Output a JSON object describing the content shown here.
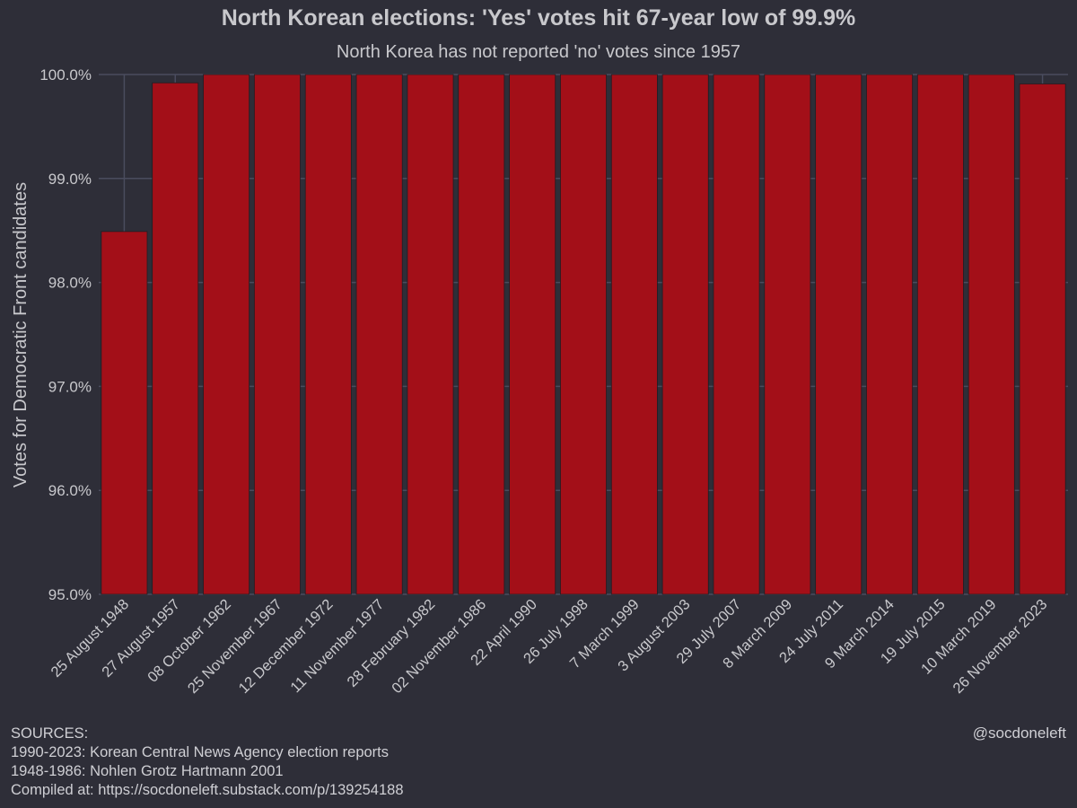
{
  "chart_data": {
    "type": "bar",
    "title": "North Korean elections: 'Yes' votes hit 67-year low of 99.9%",
    "subtitle": "North Korea has not reported 'no' votes since 1957",
    "xlabel": "",
    "ylabel": "Votes for Democratic Front candidates",
    "ylim": [
      95.0,
      100.0
    ],
    "yticks": [
      "95.0%",
      "96.0%",
      "97.0%",
      "98.0%",
      "99.0%",
      "100.0%"
    ],
    "ytick_values": [
      95.0,
      96.0,
      97.0,
      98.0,
      99.0,
      100.0
    ],
    "grid": true,
    "bar_color": "#a30f18",
    "background": "#2e2e38",
    "gridline_color": "#4a4c5e",
    "categories": [
      "25 August 1948",
      "27 August 1957",
      "08 October 1962",
      "25 November 1967",
      "12 December 1972",
      "11 November 1977",
      "28 February 1982",
      "02 November 1986",
      "22 April 1990",
      "26 July 1998",
      "7 March 1999",
      "3 August 2003",
      "29 July 2007",
      "8 March 2009",
      "24 July 2011",
      "9 March 2014",
      "19 July 2015",
      "10 March 2019",
      "26 November 2023"
    ],
    "values": [
      98.49,
      99.92,
      100.0,
      100.0,
      100.0,
      100.0,
      100.0,
      100.0,
      100.0,
      100.0,
      100.0,
      100.0,
      100.0,
      100.0,
      100.0,
      100.0,
      100.0,
      100.0,
      99.91
    ]
  },
  "footer": {
    "sources_lines": [
      "SOURCES:",
      "1990-2023: Korean Central News Agency election reports",
      "1948-1986: Nohlen Grotz Hartmann 2001",
      "Compiled at: https://socdoneleft.substack.com/p/139254188"
    ],
    "handle": "@socdoneleft"
  }
}
